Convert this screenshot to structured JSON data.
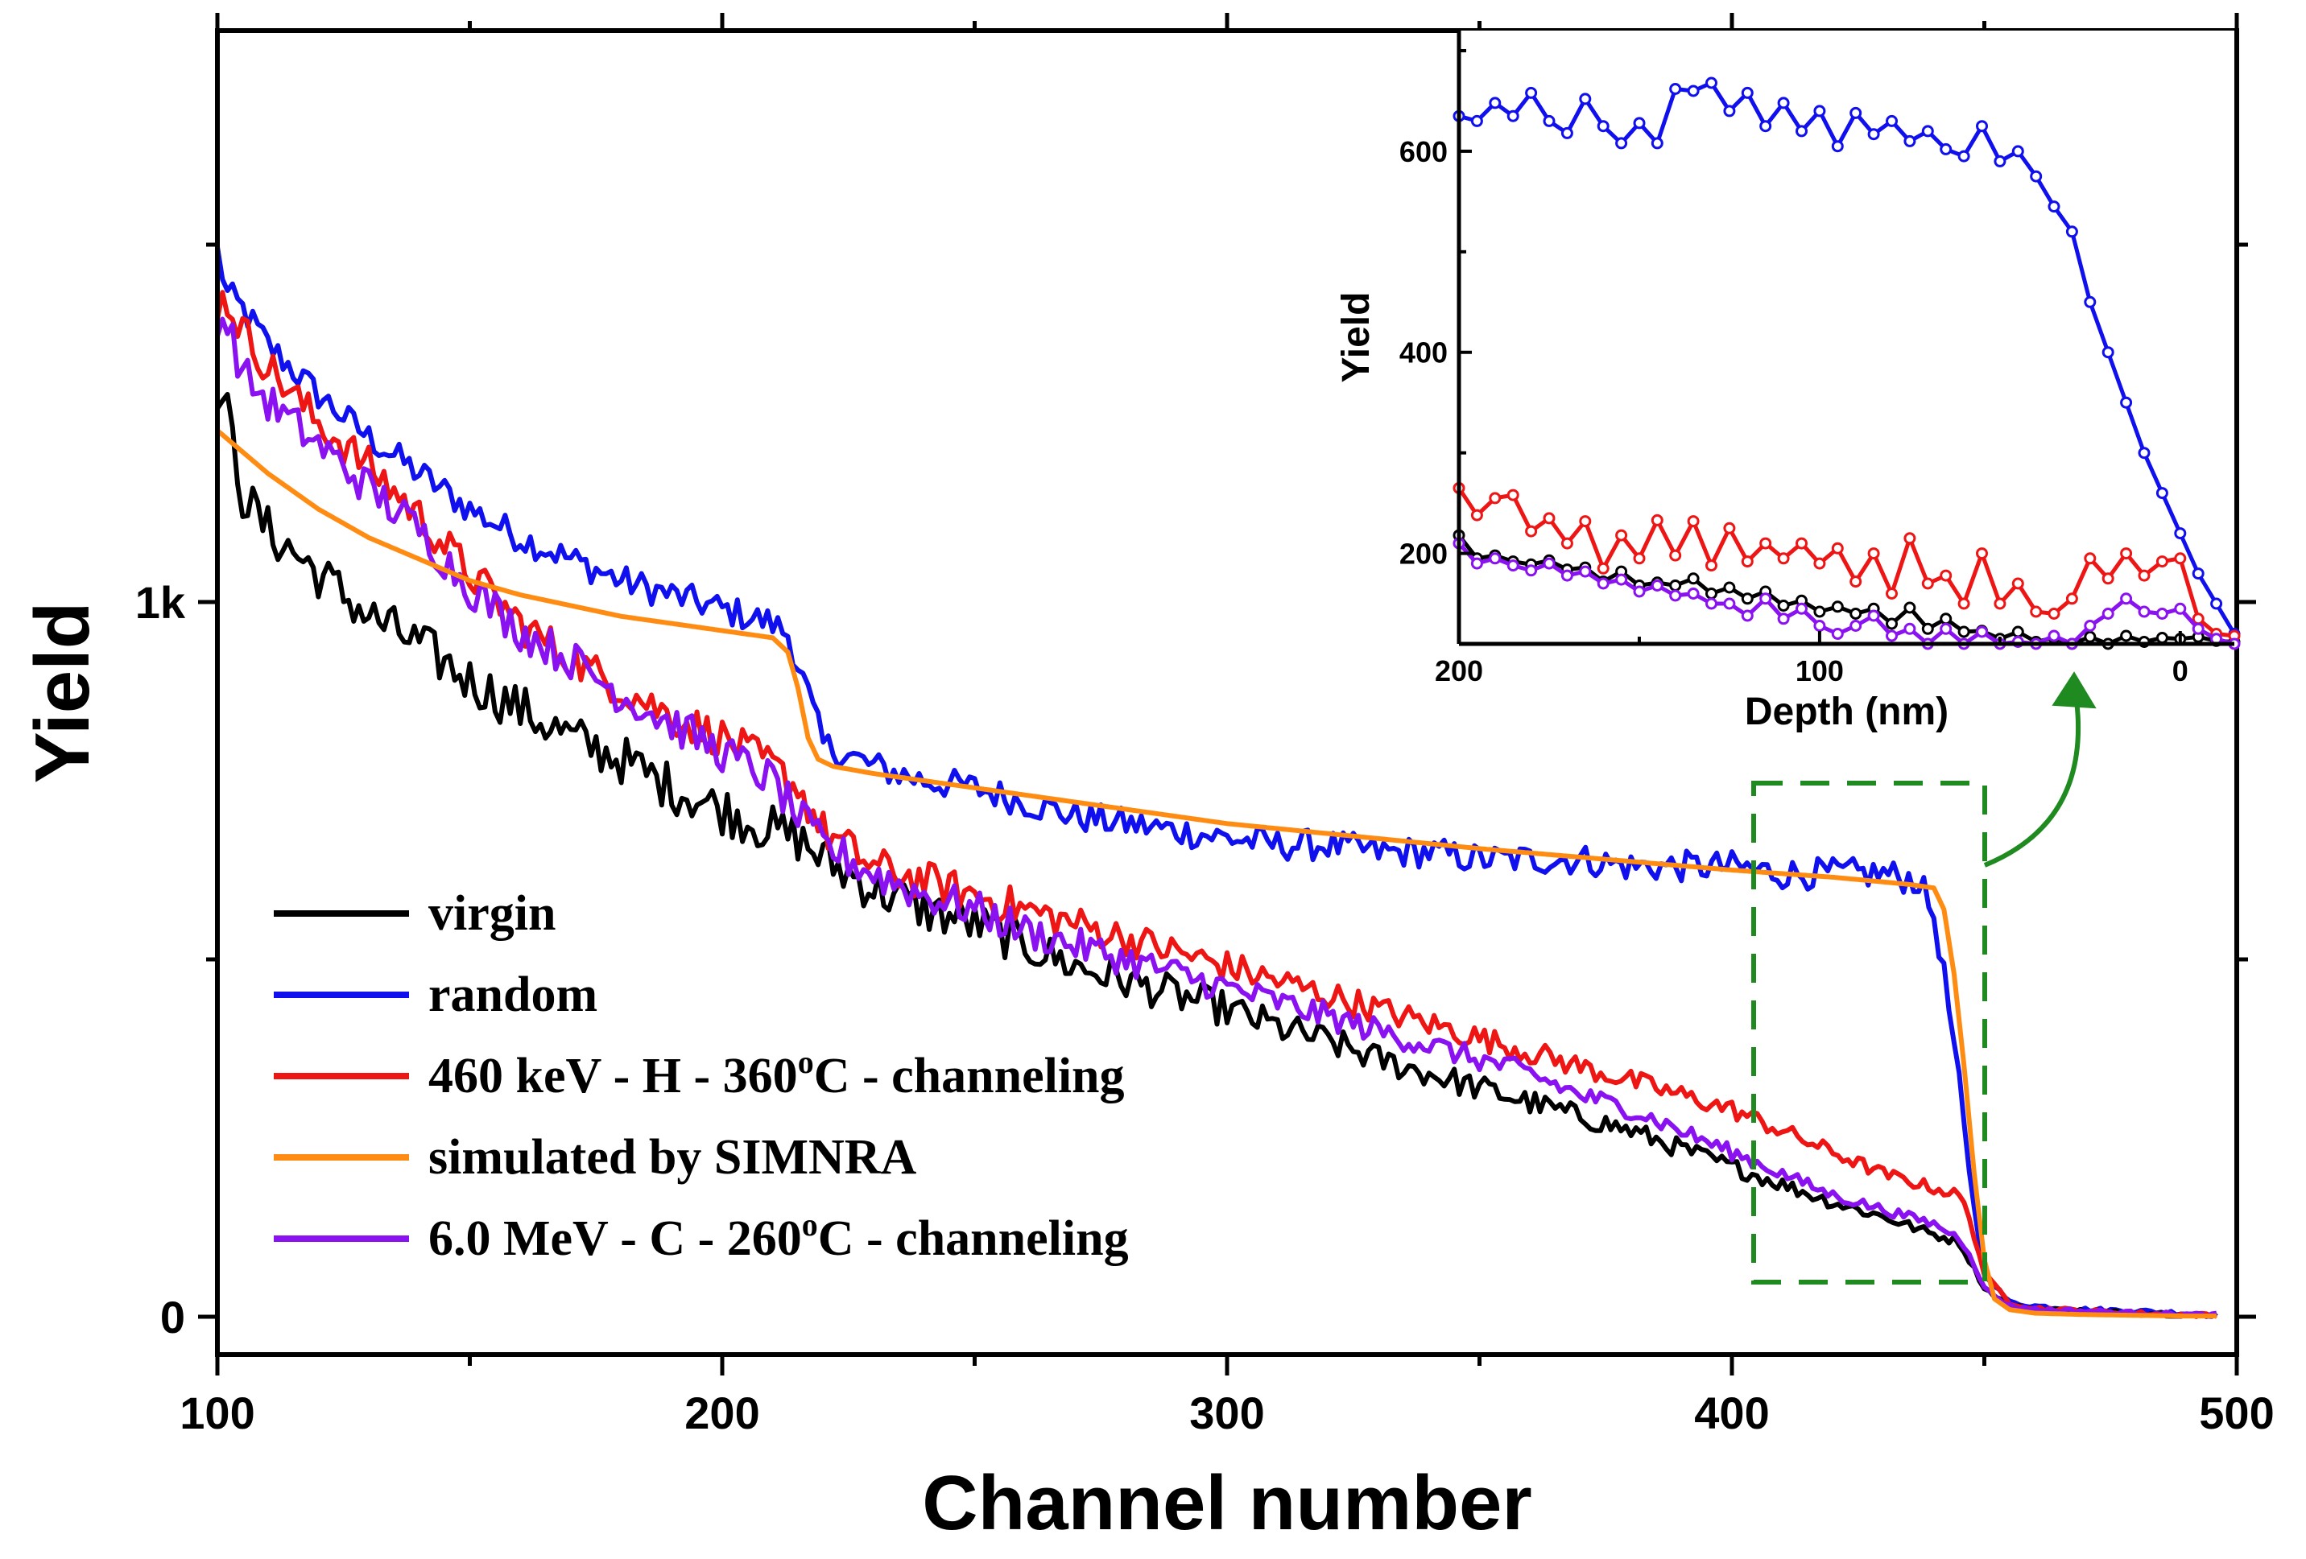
{
  "chart_data": [
    {
      "type": "line",
      "xlabel": "Channel number",
      "ylabel": "Yield",
      "xlim": [
        100,
        500
      ],
      "ylim": [
        0,
        2000
      ],
      "x_ticks": [
        100,
        200,
        300,
        400,
        500
      ],
      "x_tick_labels": [
        "100",
        "200",
        "300",
        "400",
        "500"
      ],
      "y_ticks": [
        0,
        1000
      ],
      "y_tick_labels": [
        "0",
        "1k"
      ],
      "y_minor_ticks": [
        500,
        1500
      ],
      "grid": false,
      "legend_position": "lower-left",
      "series": [
        {
          "name": "virgin",
          "color": "#000000",
          "noise": 35,
          "x": [
            100,
            102,
            105,
            110,
            120,
            130,
            140,
            150,
            160,
            170,
            180,
            190,
            200,
            210,
            215,
            220,
            230,
            240,
            250,
            260,
            270,
            280,
            290,
            300,
            310,
            320,
            330,
            340,
            350,
            360,
            370,
            380,
            390,
            400,
            410,
            420,
            430,
            440,
            445,
            447,
            450,
            455,
            460,
            470,
            480,
            490,
            495
          ],
          "y": [
            1300,
            1260,
            1150,
            1100,
            1040,
            980,
            940,
            890,
            850,
            810,
            780,
            740,
            710,
            680,
            670,
            640,
            600,
            570,
            550,
            520,
            490,
            470,
            450,
            430,
            405,
            385,
            360,
            340,
            320,
            300,
            280,
            260,
            235,
            210,
            185,
            160,
            140,
            115,
            105,
            80,
            40,
            15,
            10,
            8,
            5,
            3,
            2
          ]
        },
        {
          "name": "random",
          "color": "#1010ee",
          "noise": 22,
          "x": [
            100,
            102,
            105,
            110,
            120,
            130,
            140,
            150,
            160,
            170,
            180,
            190,
            200,
            210,
            213,
            217,
            220,
            230,
            240,
            250,
            260,
            270,
            280,
            290,
            300,
            310,
            320,
            330,
            340,
            350,
            360,
            370,
            380,
            390,
            400,
            410,
            420,
            430,
            437,
            440,
            442,
            445,
            447,
            450,
            455,
            460,
            470,
            480,
            490,
            495
          ],
          "y": [
            1490,
            1430,
            1410,
            1360,
            1290,
            1230,
            1180,
            1130,
            1090,
            1060,
            1030,
            1010,
            990,
            970,
            955,
            870,
            800,
            770,
            750,
            740,
            720,
            700,
            690,
            680,
            670,
            660,
            660,
            650,
            650,
            640,
            640,
            640,
            630,
            630,
            630,
            620,
            620,
            620,
            610,
            560,
            480,
            330,
            200,
            60,
            20,
            15,
            10,
            8,
            5,
            3
          ]
        },
        {
          "name": "460 keV - H - 360°C - channeling",
          "color": "#ee1515",
          "noise": 28,
          "x": [
            100,
            102,
            105,
            110,
            120,
            130,
            140,
            150,
            160,
            170,
            180,
            190,
            200,
            210,
            215,
            220,
            230,
            240,
            250,
            260,
            270,
            280,
            290,
            300,
            310,
            320,
            330,
            340,
            350,
            360,
            370,
            380,
            390,
            400,
            410,
            420,
            430,
            440,
            445,
            447,
            450,
            455,
            460,
            470,
            480,
            490,
            495
          ],
          "y": [
            1420,
            1420,
            1380,
            1330,
            1250,
            1190,
            1120,
            1040,
            970,
            920,
            880,
            840,
            810,
            770,
            740,
            680,
            630,
            610,
            590,
            570,
            550,
            530,
            510,
            490,
            470,
            450,
            430,
            410,
            390,
            370,
            350,
            330,
            310,
            290,
            260,
            230,
            200,
            180,
            170,
            140,
            60,
            20,
            12,
            8,
            5,
            3,
            2
          ]
        },
        {
          "name": "simulated by SIMNRA",
          "color": "#ff8c12",
          "noise": 0,
          "x": [
            100,
            110,
            120,
            130,
            140,
            150,
            160,
            170,
            180,
            190,
            200,
            210,
            213,
            215,
            217,
            219,
            222,
            230,
            250,
            300,
            350,
            400,
            420,
            435,
            440,
            442,
            444,
            446,
            448,
            450,
            452,
            455,
            460,
            470,
            480,
            490,
            495
          ],
          "y": [
            1240,
            1180,
            1130,
            1090,
            1060,
            1030,
            1010,
            995,
            980,
            970,
            960,
            950,
            930,
            880,
            810,
            780,
            770,
            760,
            740,
            690,
            655,
            625,
            615,
            605,
            600,
            570,
            480,
            350,
            200,
            80,
            25,
            10,
            5,
            3,
            2,
            1,
            1
          ]
        },
        {
          "name": "6.0 MeV - C - 260°C - channeling",
          "color": "#8a12f0",
          "noise": 28,
          "x": [
            100,
            102,
            105,
            110,
            120,
            130,
            140,
            150,
            160,
            170,
            180,
            190,
            200,
            210,
            215,
            220,
            230,
            240,
            250,
            260,
            270,
            280,
            290,
            300,
            310,
            320,
            330,
            340,
            350,
            360,
            370,
            380,
            390,
            400,
            410,
            420,
            430,
            440,
            445,
            447,
            450,
            455,
            460,
            470,
            480,
            490,
            495
          ],
          "y": [
            1400,
            1390,
            1320,
            1280,
            1220,
            1160,
            1100,
            1020,
            960,
            920,
            870,
            830,
            790,
            750,
            700,
            660,
            620,
            590,
            570,
            540,
            520,
            500,
            480,
            460,
            440,
            420,
            400,
            380,
            360,
            340,
            310,
            290,
            260,
            230,
            200,
            170,
            150,
            130,
            110,
            90,
            40,
            15,
            10,
            8,
            5,
            3,
            2
          ]
        }
      ],
      "annotation": "dashed green rectangle around channels 405-450 with arrow to inset"
    },
    {
      "type": "line",
      "xlabel": "Depth (nm)",
      "ylabel": "Yield",
      "xlim": [
        200,
        -15
      ],
      "ylim": [
        110,
        720
      ],
      "x_ticks": [
        200,
        100,
        0
      ],
      "x_tick_labels": [
        "200",
        "100",
        "0"
      ],
      "y_ticks": [
        200,
        400,
        600
      ],
      "y_tick_labels": [
        "200",
        "400",
        "600"
      ],
      "markers": true,
      "series": [
        {
          "color": "#000000",
          "x": [
            200,
            195,
            190,
            185,
            180,
            175,
            170,
            165,
            160,
            155,
            150,
            145,
            140,
            135,
            130,
            125,
            120,
            115,
            110,
            105,
            100,
            95,
            90,
            85,
            80,
            75,
            70,
            65,
            60,
            55,
            50,
            45,
            40,
            35,
            30,
            25,
            20,
            15,
            10,
            5,
            0,
            -5,
            -10,
            -15
          ],
          "y": [
            218,
            195,
            198,
            192,
            189,
            193,
            184,
            186,
            172,
            182,
            168,
            171,
            168,
            175,
            160,
            166,
            155,
            162,
            148,
            153,
            142,
            147,
            140,
            145,
            130,
            146,
            125,
            135,
            122,
            123,
            115,
            122,
            112,
            116,
            108,
            117,
            110,
            118,
            112,
            116,
            115,
            117,
            113,
            112
          ]
        },
        {
          "color": "#1010ee",
          "x": [
            200,
            195,
            190,
            185,
            180,
            175,
            170,
            165,
            160,
            155,
            150,
            145,
            140,
            135,
            130,
            125,
            120,
            115,
            110,
            105,
            100,
            95,
            90,
            85,
            80,
            75,
            70,
            65,
            60,
            55,
            50,
            45,
            40,
            35,
            30,
            25,
            20,
            15,
            10,
            5,
            0,
            -5,
            -10,
            -15
          ],
          "y": [
            635,
            630,
            648,
            635,
            658,
            630,
            618,
            652,
            625,
            608,
            628,
            608,
            662,
            660,
            668,
            640,
            658,
            625,
            648,
            620,
            640,
            605,
            638,
            617,
            630,
            610,
            620,
            602,
            595,
            625,
            590,
            600,
            575,
            545,
            520,
            450,
            400,
            350,
            300,
            260,
            220,
            180,
            150,
            120
          ]
        },
        {
          "color": "#ee1515",
          "x": [
            200,
            195,
            190,
            185,
            180,
            175,
            170,
            165,
            160,
            155,
            150,
            145,
            140,
            135,
            130,
            125,
            120,
            115,
            110,
            105,
            100,
            95,
            90,
            85,
            80,
            75,
            70,
            65,
            60,
            55,
            50,
            45,
            40,
            35,
            30,
            25,
            20,
            15,
            10,
            5,
            0,
            -5,
            -10,
            -15
          ],
          "y": [
            265,
            238,
            255,
            258,
            222,
            235,
            210,
            232,
            185,
            218,
            195,
            233,
            198,
            232,
            188,
            225,
            192,
            210,
            195,
            210,
            190,
            205,
            172,
            200,
            160,
            215,
            170,
            178,
            150,
            200,
            150,
            170,
            142,
            140,
            155,
            195,
            175,
            200,
            178,
            192,
            195,
            135,
            120,
            118
          ]
        },
        {
          "color": "#8a12f0",
          "x": [
            200,
            195,
            190,
            185,
            180,
            175,
            170,
            165,
            160,
            155,
            150,
            145,
            140,
            135,
            130,
            125,
            120,
            115,
            110,
            105,
            100,
            95,
            90,
            85,
            80,
            75,
            70,
            65,
            60,
            55,
            50,
            45,
            40,
            35,
            30,
            25,
            20,
            15,
            10,
            5,
            0,
            -5,
            -10,
            -15
          ],
          "y": [
            210,
            190,
            195,
            188,
            183,
            190,
            178,
            182,
            170,
            174,
            162,
            168,
            158,
            160,
            150,
            150,
            138,
            155,
            135,
            145,
            128,
            120,
            128,
            138,
            118,
            125,
            110,
            125,
            108,
            122,
            105,
            112,
            100,
            118,
            105,
            128,
            140,
            155,
            142,
            140,
            145,
            125,
            115,
            100
          ]
        }
      ]
    }
  ]
}
